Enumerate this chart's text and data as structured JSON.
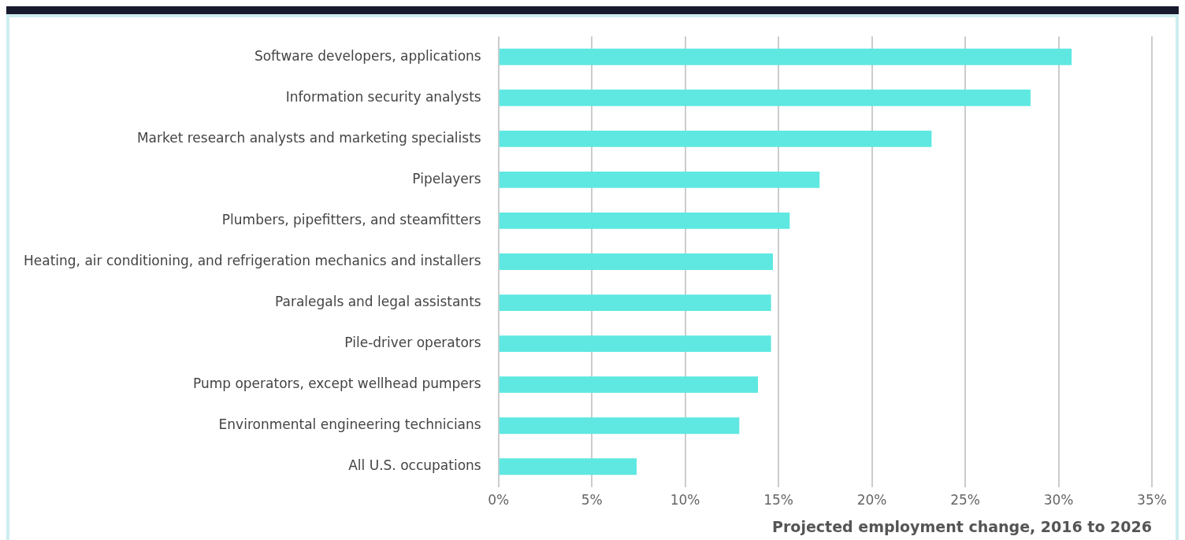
{
  "chart_data": {
    "type": "bar",
    "orientation": "horizontal",
    "xlabel": "Projected employment change, 2016 to 2026",
    "categories": [
      "Software developers, applications",
      "Information security analysts",
      "Market research analysts and marketing specialists",
      "Pipelayers",
      "Plumbers, pipefitters, and steamfitters",
      "Heating, air conditioning, and refrigeration mechanics and installers",
      "Paralegals and legal assistants",
      "Pile-driver operators",
      "Pump operators, except wellhead pumpers",
      "Environmental engineering technicians",
      "All U.S. occupations"
    ],
    "values": [
      30.7,
      28.5,
      23.2,
      17.2,
      15.6,
      14.7,
      14.6,
      14.6,
      13.9,
      12.9,
      7.4
    ],
    "color": "#5ee8e1",
    "xlim": [
      0,
      35
    ],
    "xticks": [
      {
        "value": 0,
        "label": "0%"
      },
      {
        "value": 5,
        "label": "5%"
      },
      {
        "value": 10,
        "label": "10%"
      },
      {
        "value": 15,
        "label": "15%"
      },
      {
        "value": 20,
        "label": "20%"
      },
      {
        "value": 25,
        "label": "25%"
      },
      {
        "value": 30,
        "label": "30%"
      },
      {
        "value": 35,
        "label": "35%"
      }
    ],
    "grid": "x"
  }
}
